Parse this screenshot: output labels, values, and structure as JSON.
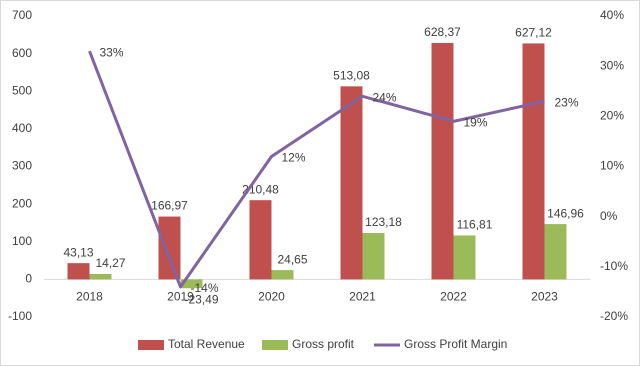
{
  "chart_data": {
    "type": "bar-line",
    "categories": [
      "2018",
      "2019",
      "2020",
      "2021",
      "2022",
      "2023"
    ],
    "series": [
      {
        "name": "Total Revenue",
        "type": "bar",
        "color": "#c0504d",
        "values": [
          43.13,
          166.97,
          210.48,
          513.08,
          628.37,
          627.12
        ],
        "value_labels": [
          "43,13",
          "166,97",
          "210,48",
          "513,08",
          "628,37",
          "627,12"
        ]
      },
      {
        "name": "Gross profit",
        "type": "bar",
        "color": "#9bbb59",
        "values": [
          14.27,
          -23.49,
          24.65,
          123.18,
          116.81,
          146.96
        ],
        "value_labels": [
          "14,27",
          "-23,49",
          "24,65",
          "123,18",
          "116,81",
          "146,96"
        ]
      },
      {
        "name": "Gross Profit Margin",
        "type": "line",
        "axis": "y2",
        "color": "#8064a2",
        "values": [
          33,
          -14,
          12,
          24,
          19,
          23
        ],
        "value_labels": [
          "33%",
          "-14%",
          "12%",
          "24%",
          "19%",
          "23%"
        ]
      }
    ],
    "ylim": [
      -100,
      700
    ],
    "yticks": [
      -100,
      0,
      100,
      200,
      300,
      400,
      500,
      600,
      700
    ],
    "y2lim": [
      -20,
      40
    ],
    "y2ticks": [
      {
        "value": -20,
        "label": "-20%"
      },
      {
        "value": -10,
        "label": "-10%"
      },
      {
        "value": 0,
        "label": "0%"
      },
      {
        "value": 10,
        "label": "10%"
      },
      {
        "value": 20,
        "label": "20%"
      },
      {
        "value": 30,
        "label": "30%"
      },
      {
        "value": 40,
        "label": "40%"
      }
    ],
    "grid": false,
    "legend": "bottom"
  }
}
